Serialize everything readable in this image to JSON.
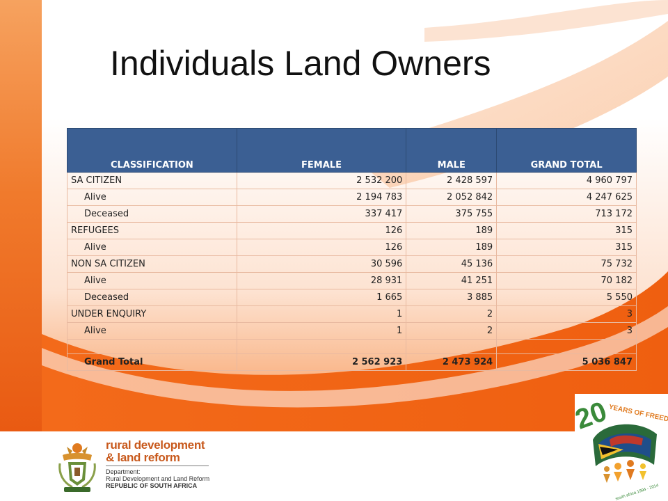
{
  "title": "Individuals Land Owners",
  "table": {
    "headers": [
      "CLASSIFICATION",
      "FEMALE",
      "MALE",
      "GRAND TOTAL"
    ],
    "rows": [
      {
        "label": "SA CITIZEN",
        "female": "2 532 200",
        "male": "2 428 597",
        "total": "4 960 797"
      },
      {
        "label": "Alive",
        "female": "2 194 783",
        "male": "2 052 842",
        "total": "4 247 625"
      },
      {
        "label": "Deceased",
        "female": "337 417",
        "male": "375 755",
        "total": "713 172"
      },
      {
        "label": "REFUGEES",
        "female": "126",
        "male": "189",
        "total": "315"
      },
      {
        "label": "Alive",
        "female": "126",
        "male": "189",
        "total": "315"
      },
      {
        "label": "NON SA CITIZEN",
        "female": "30 596",
        "male": "45 136",
        "total": "75 732"
      },
      {
        "label": "Alive",
        "female": "28 931",
        "male": "41 251",
        "total": "70 182"
      },
      {
        "label": "Deceased",
        "female": "1 665",
        "male": "3 885",
        "total": "5 550"
      },
      {
        "label": "UNDER ENQUIRY",
        "female": "1",
        "male": "2",
        "total": "3"
      },
      {
        "label": "Alive",
        "female": "1",
        "male": "2",
        "total": "3"
      }
    ],
    "grand_total": {
      "label": "Grand Total",
      "female": "2 562 923",
      "male": "2 473 924",
      "total": "5 036 847"
    }
  },
  "footer": {
    "dept_logo_line1": "rural development",
    "dept_logo_line2": "& land reform",
    "dept_label": "Department:",
    "dept_full": "Rural Development and Land Reform",
    "country": "REPUBLIC OF SOUTH AFRICA",
    "badge_number": "20",
    "badge_text": "YEARS OF FREEDOM",
    "badge_sub": "south africa 1994 - 2014"
  },
  "colors": {
    "header_bg": "#3b5f93",
    "accent_orange": "#f06a1c",
    "dept_orange": "#c8591c"
  }
}
